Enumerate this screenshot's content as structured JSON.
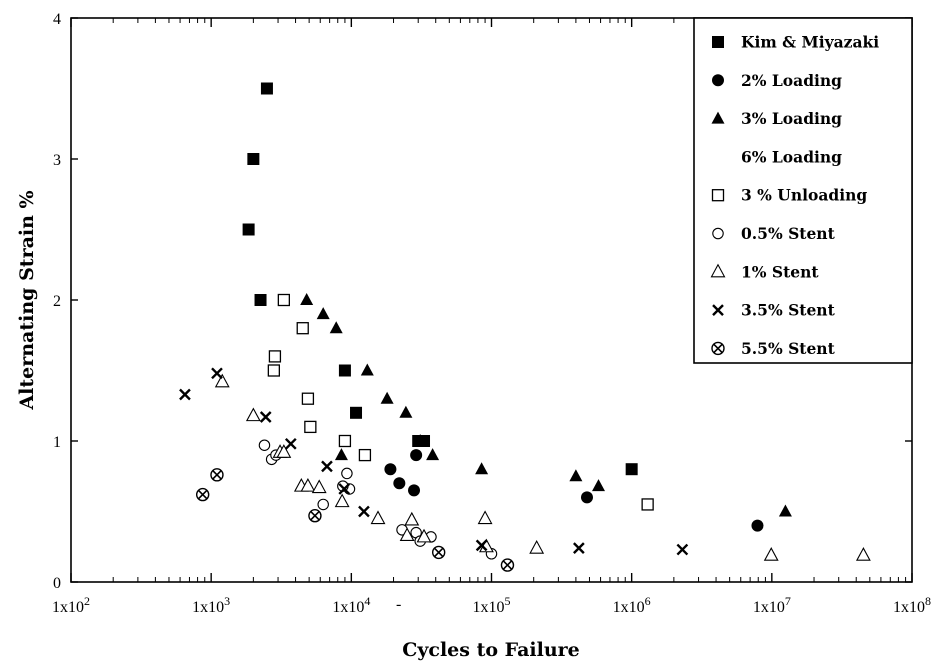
{
  "chart_data": {
    "type": "scatter",
    "xlabel": "Cycles to Failure",
    "ylabel": "Alternating Strain %",
    "x_scale": "log",
    "xlim": [
      100,
      100000000
    ],
    "ylim": [
      0,
      4
    ],
    "x_ticks": [
      {
        "value": 100,
        "label": "1x10",
        "exp": "2"
      },
      {
        "value": 1000,
        "label": "1x10",
        "exp": "3"
      },
      {
        "value": 10000,
        "label": "1x10",
        "exp": "4"
      },
      {
        "value": 100000,
        "label": "1x10",
        "exp": "5"
      },
      {
        "value": 1000000,
        "label": "1x10",
        "exp": "6"
      },
      {
        "value": 10000000,
        "label": "1x10",
        "exp": "7"
      },
      {
        "value": 100000000,
        "label": "1x10",
        "exp": "8"
      }
    ],
    "y_ticks": [
      {
        "value": 0,
        "label": "0"
      },
      {
        "value": 1,
        "label": "1"
      },
      {
        "value": 2,
        "label": "2"
      },
      {
        "value": 3,
        "label": "3"
      },
      {
        "value": 4,
        "label": "4"
      }
    ],
    "stray_mark": "-",
    "legend_position": "top-right",
    "grid": false,
    "series": [
      {
        "name": "Kim & Miyazaki",
        "marker": "filled-square",
        "points": [
          [
            2500,
            3.5
          ],
          [
            2000,
            3.0
          ],
          [
            1850,
            2.5
          ],
          [
            2250,
            2.0
          ],
          [
            9000,
            1.5
          ],
          [
            10800,
            1.2
          ],
          [
            30000,
            1.0
          ],
          [
            33000,
            1.0
          ],
          [
            1000000,
            0.8
          ]
        ]
      },
      {
        "name": "2% Loading",
        "marker": "filled-circle",
        "points": [
          [
            19000,
            0.8
          ],
          [
            22000,
            0.7
          ],
          [
            28000,
            0.65
          ],
          [
            29000,
            0.9
          ],
          [
            480000,
            0.6
          ],
          [
            7900000,
            0.4
          ]
        ]
      },
      {
        "name": "3% Loading",
        "marker": "filled-triangle",
        "points": [
          [
            4800,
            2.0
          ],
          [
            6300,
            1.9
          ],
          [
            7800,
            1.8
          ],
          [
            13000,
            1.5
          ],
          [
            18000,
            1.3
          ],
          [
            24500,
            1.2
          ],
          [
            31000,
            1.0
          ],
          [
            38000,
            0.9
          ],
          [
            85000,
            0.8
          ],
          [
            8500,
            0.9
          ],
          [
            400000,
            0.75
          ],
          [
            580000,
            0.68
          ],
          [
            12500000,
            0.5
          ]
        ]
      },
      {
        "name": "6% Loading",
        "marker": "none",
        "points": []
      },
      {
        "name": "3 % Unloading",
        "marker": "open-square",
        "points": [
          [
            3300,
            2.0
          ],
          [
            4500,
            1.8
          ],
          [
            2850,
            1.6
          ],
          [
            2800,
            1.5
          ],
          [
            4900,
            1.3
          ],
          [
            5100,
            1.1
          ],
          [
            9000,
            1.0
          ],
          [
            12500,
            0.9
          ],
          [
            1300000,
            0.55
          ]
        ]
      },
      {
        "name": "0.5% Stent",
        "marker": "open-circle",
        "points": [
          [
            2400,
            0.97
          ],
          [
            2700,
            0.87
          ],
          [
            2900,
            0.9
          ],
          [
            9300,
            0.77
          ],
          [
            9700,
            0.66
          ],
          [
            6300,
            0.55
          ],
          [
            8700,
            0.68
          ],
          [
            23000,
            0.37
          ],
          [
            29000,
            0.35
          ],
          [
            31000,
            0.29
          ],
          [
            37000,
            0.32
          ],
          [
            100000,
            0.2
          ]
        ]
      },
      {
        "name": "1% Stent",
        "marker": "open-triangle",
        "points": [
          [
            1200,
            1.42
          ],
          [
            2000,
            1.18
          ],
          [
            3100,
            0.92
          ],
          [
            3300,
            0.92
          ],
          [
            4400,
            0.68
          ],
          [
            4900,
            0.68
          ],
          [
            5900,
            0.67
          ],
          [
            8600,
            0.57
          ],
          [
            15500,
            0.45
          ],
          [
            25000,
            0.33
          ],
          [
            27000,
            0.44
          ],
          [
            33000,
            0.32
          ],
          [
            90000,
            0.45
          ],
          [
            92000,
            0.25
          ],
          [
            210000,
            0.24
          ],
          [
            9900000,
            0.19
          ],
          [
            45000000,
            0.19
          ]
        ]
      },
      {
        "name": "3.5% Stent",
        "marker": "x",
        "points": [
          [
            650,
            1.33
          ],
          [
            1100,
            1.48
          ],
          [
            2450,
            1.17
          ],
          [
            3700,
            0.98
          ],
          [
            6700,
            0.82
          ],
          [
            8900,
            0.66
          ],
          [
            12300,
            0.5
          ],
          [
            85000,
            0.26
          ],
          [
            420000,
            0.24
          ],
          [
            2300000,
            0.23
          ]
        ]
      },
      {
        "name": "5.5% Stent",
        "marker": "circled-x",
        "points": [
          [
            870,
            0.62
          ],
          [
            1100,
            0.76
          ],
          [
            5500,
            0.47
          ],
          [
            42000,
            0.21
          ],
          [
            130000,
            0.12
          ]
        ]
      }
    ]
  }
}
